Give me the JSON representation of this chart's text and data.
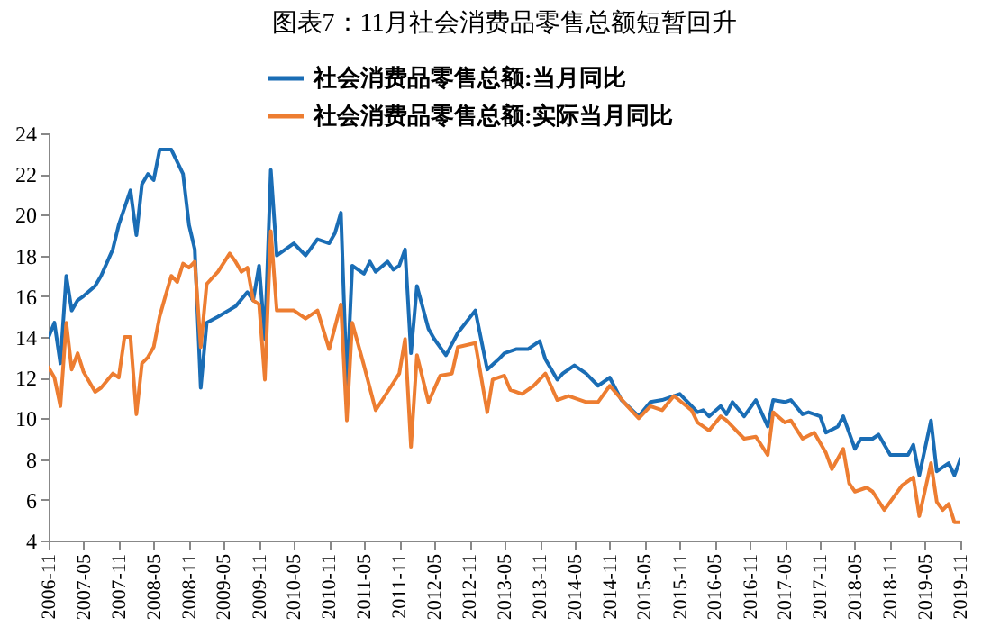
{
  "chart_data": {
    "type": "line",
    "title": "图表7：11月社会消费品零售总额短暂回升",
    "series": [
      {
        "name": "社会消费品零售总额:当月同比",
        "color": "#1a6db5",
        "x": [
          "2006-11",
          "2006-12",
          "2007-01",
          "2007-02",
          "2007-03",
          "2007-04",
          "2007-05",
          "2007-07",
          "2007-08",
          "2007-10",
          "2007-11",
          "2008-01",
          "2008-02",
          "2008-03",
          "2008-04",
          "2008-05",
          "2008-06",
          "2008-08",
          "2008-10",
          "2008-11",
          "2008-12",
          "2009-01",
          "2009-02",
          "2009-04",
          "2009-07",
          "2009-09",
          "2009-10",
          "2009-11",
          "2009-12",
          "2010-01",
          "2010-02",
          "2010-05",
          "2010-07",
          "2010-09",
          "2010-11",
          "2010-12",
          "2011-01",
          "2011-02",
          "2011-03",
          "2011-05",
          "2011-06",
          "2011-07",
          "2011-09",
          "2011-10",
          "2011-11",
          "2011-12",
          "2012-01",
          "2012-02",
          "2012-04",
          "2012-05",
          "2012-07",
          "2012-09",
          "2012-12",
          "2013-02",
          "2013-04",
          "2013-05",
          "2013-07",
          "2013-09",
          "2013-11",
          "2013-12",
          "2014-02",
          "2014-03",
          "2014-05",
          "2014-07",
          "2014-09",
          "2014-11",
          "2015-01",
          "2015-04",
          "2015-06",
          "2015-08",
          "2015-11",
          "2016-02",
          "2016-03",
          "2016-04",
          "2016-06",
          "2016-07",
          "2016-08",
          "2016-10",
          "2016-12",
          "2017-02",
          "2017-03",
          "2017-05",
          "2017-06",
          "2017-08",
          "2017-09",
          "2017-11",
          "2017-12",
          "2018-02",
          "2018-03",
          "2018-05",
          "2018-06",
          "2018-08",
          "2018-09",
          "2018-11",
          "2019-02",
          "2019-03",
          "2019-04",
          "2019-06",
          "2019-07",
          "2019-09",
          "2019-10",
          "2019-11"
        ],
        "values": [
          14.0,
          14.7,
          12.7,
          17.0,
          15.3,
          15.8,
          16.0,
          16.5,
          17.0,
          18.3,
          19.5,
          21.2,
          19.0,
          21.5,
          22.0,
          21.7,
          23.2,
          23.2,
          22.0,
          19.5,
          18.3,
          11.5,
          14.7,
          15.0,
          15.5,
          16.2,
          15.8,
          17.5,
          13.9,
          22.2,
          18.0,
          18.6,
          18.0,
          18.8,
          18.6,
          19.1,
          20.1,
          11.6,
          17.5,
          17.1,
          17.7,
          17.2,
          17.7,
          17.3,
          17.5,
          18.3,
          13.2,
          16.5,
          14.4,
          13.9,
          13.1,
          14.2,
          15.3,
          12.4,
          12.9,
          13.2,
          13.4,
          13.4,
          13.8,
          12.9,
          11.9,
          12.2,
          12.6,
          12.2,
          11.6,
          12.0,
          10.9,
          10.1,
          10.8,
          10.9,
          11.2,
          10.3,
          10.4,
          10.1,
          10.6,
          10.2,
          10.8,
          10.1,
          10.9,
          9.6,
          10.9,
          10.8,
          10.9,
          10.2,
          10.3,
          10.1,
          9.3,
          9.6,
          10.1,
          8.5,
          9.0,
          9.0,
          9.2,
          8.2,
          8.2,
          8.7,
          7.2,
          9.9,
          7.4,
          7.8,
          7.2,
          8.0
        ]
      },
      {
        "name": "社会消费品零售总额:实际当月同比",
        "color": "#ed7d31",
        "x": [
          "2006-11",
          "2006-12",
          "2007-01",
          "2007-02",
          "2007-03",
          "2007-04",
          "2007-05",
          "2007-07",
          "2007-08",
          "2007-10",
          "2007-11",
          "2007-12",
          "2008-01",
          "2008-02",
          "2008-03",
          "2008-04",
          "2008-05",
          "2008-06",
          "2008-07",
          "2008-08",
          "2008-09",
          "2008-10",
          "2008-11",
          "2008-12",
          "2009-01",
          "2009-02",
          "2009-04",
          "2009-06",
          "2009-07",
          "2009-08",
          "2009-09",
          "2009-10",
          "2009-11",
          "2009-12",
          "2010-01",
          "2010-02",
          "2010-05",
          "2010-07",
          "2010-09",
          "2010-11",
          "2011-01",
          "2011-02",
          "2011-03",
          "2011-05",
          "2011-07",
          "2011-09",
          "2011-11",
          "2011-12",
          "2012-01",
          "2012-02",
          "2012-04",
          "2012-06",
          "2012-08",
          "2012-09",
          "2012-12",
          "2013-02",
          "2013-03",
          "2013-05",
          "2013-06",
          "2013-08",
          "2013-10",
          "2013-12",
          "2014-02",
          "2014-04",
          "2014-07",
          "2014-09",
          "2014-11",
          "2015-02",
          "2015-04",
          "2015-06",
          "2015-08",
          "2015-10",
          "2016-01",
          "2016-02",
          "2016-04",
          "2016-06",
          "2016-07",
          "2016-10",
          "2016-12",
          "2017-02",
          "2017-03",
          "2017-05",
          "2017-06",
          "2017-08",
          "2017-10",
          "2017-12",
          "2018-01",
          "2018-03",
          "2018-04",
          "2018-05",
          "2018-07",
          "2018-08",
          "2018-10",
          "2019-01",
          "2019-03",
          "2019-04",
          "2019-06",
          "2019-07",
          "2019-08",
          "2019-09",
          "2019-10",
          "2019-11"
        ],
        "values": [
          12.5,
          12.0,
          10.6,
          14.7,
          12.4,
          13.2,
          12.3,
          11.3,
          11.5,
          12.2,
          12.0,
          14.0,
          14.0,
          10.2,
          12.7,
          13.0,
          13.5,
          15.0,
          16.0,
          17.0,
          16.7,
          17.6,
          17.4,
          17.7,
          13.5,
          16.6,
          17.2,
          18.1,
          17.7,
          17.2,
          17.4,
          15.8,
          15.6,
          11.9,
          19.2,
          15.3,
          15.3,
          14.9,
          15.3,
          13.4,
          15.6,
          9.9,
          14.7,
          12.6,
          10.4,
          11.3,
          12.2,
          13.9,
          8.6,
          13.1,
          10.8,
          12.1,
          12.2,
          13.5,
          13.7,
          10.3,
          11.9,
          12.1,
          11.4,
          11.2,
          11.6,
          12.2,
          10.9,
          11.1,
          10.8,
          10.8,
          11.6,
          10.6,
          10.0,
          10.6,
          10.4,
          11.1,
          10.4,
          9.8,
          9.4,
          10.1,
          9.9,
          9.0,
          9.1,
          8.2,
          10.3,
          9.8,
          9.9,
          9.0,
          9.3,
          8.3,
          7.5,
          8.5,
          6.8,
          6.4,
          6.6,
          6.4,
          5.5,
          6.7,
          7.1,
          5.2,
          7.8,
          5.9,
          5.5,
          5.8,
          4.9,
          4.9
        ]
      }
    ],
    "xlim": [
      "2006-11",
      "2019-11"
    ],
    "xticks": [
      "2006-11",
      "2007-05",
      "2007-11",
      "2008-05",
      "2008-11",
      "2009-05",
      "2009-11",
      "2010-05",
      "2010-11",
      "2011-05",
      "2011-11",
      "2012-05",
      "2012-11",
      "2013-05",
      "2013-11",
      "2014-05",
      "2014-11",
      "2015-05",
      "2015-11",
      "2016-05",
      "2016-11",
      "2017-05",
      "2017-11",
      "2018-05",
      "2018-11",
      "2019-05",
      "2019-11"
    ],
    "ylim": [
      4,
      24
    ],
    "yticks": [
      4,
      6,
      8,
      10,
      12,
      14,
      16,
      18,
      20,
      22,
      24
    ],
    "grid": false,
    "legend": "top",
    "line_style": "solid",
    "marker": "none"
  }
}
